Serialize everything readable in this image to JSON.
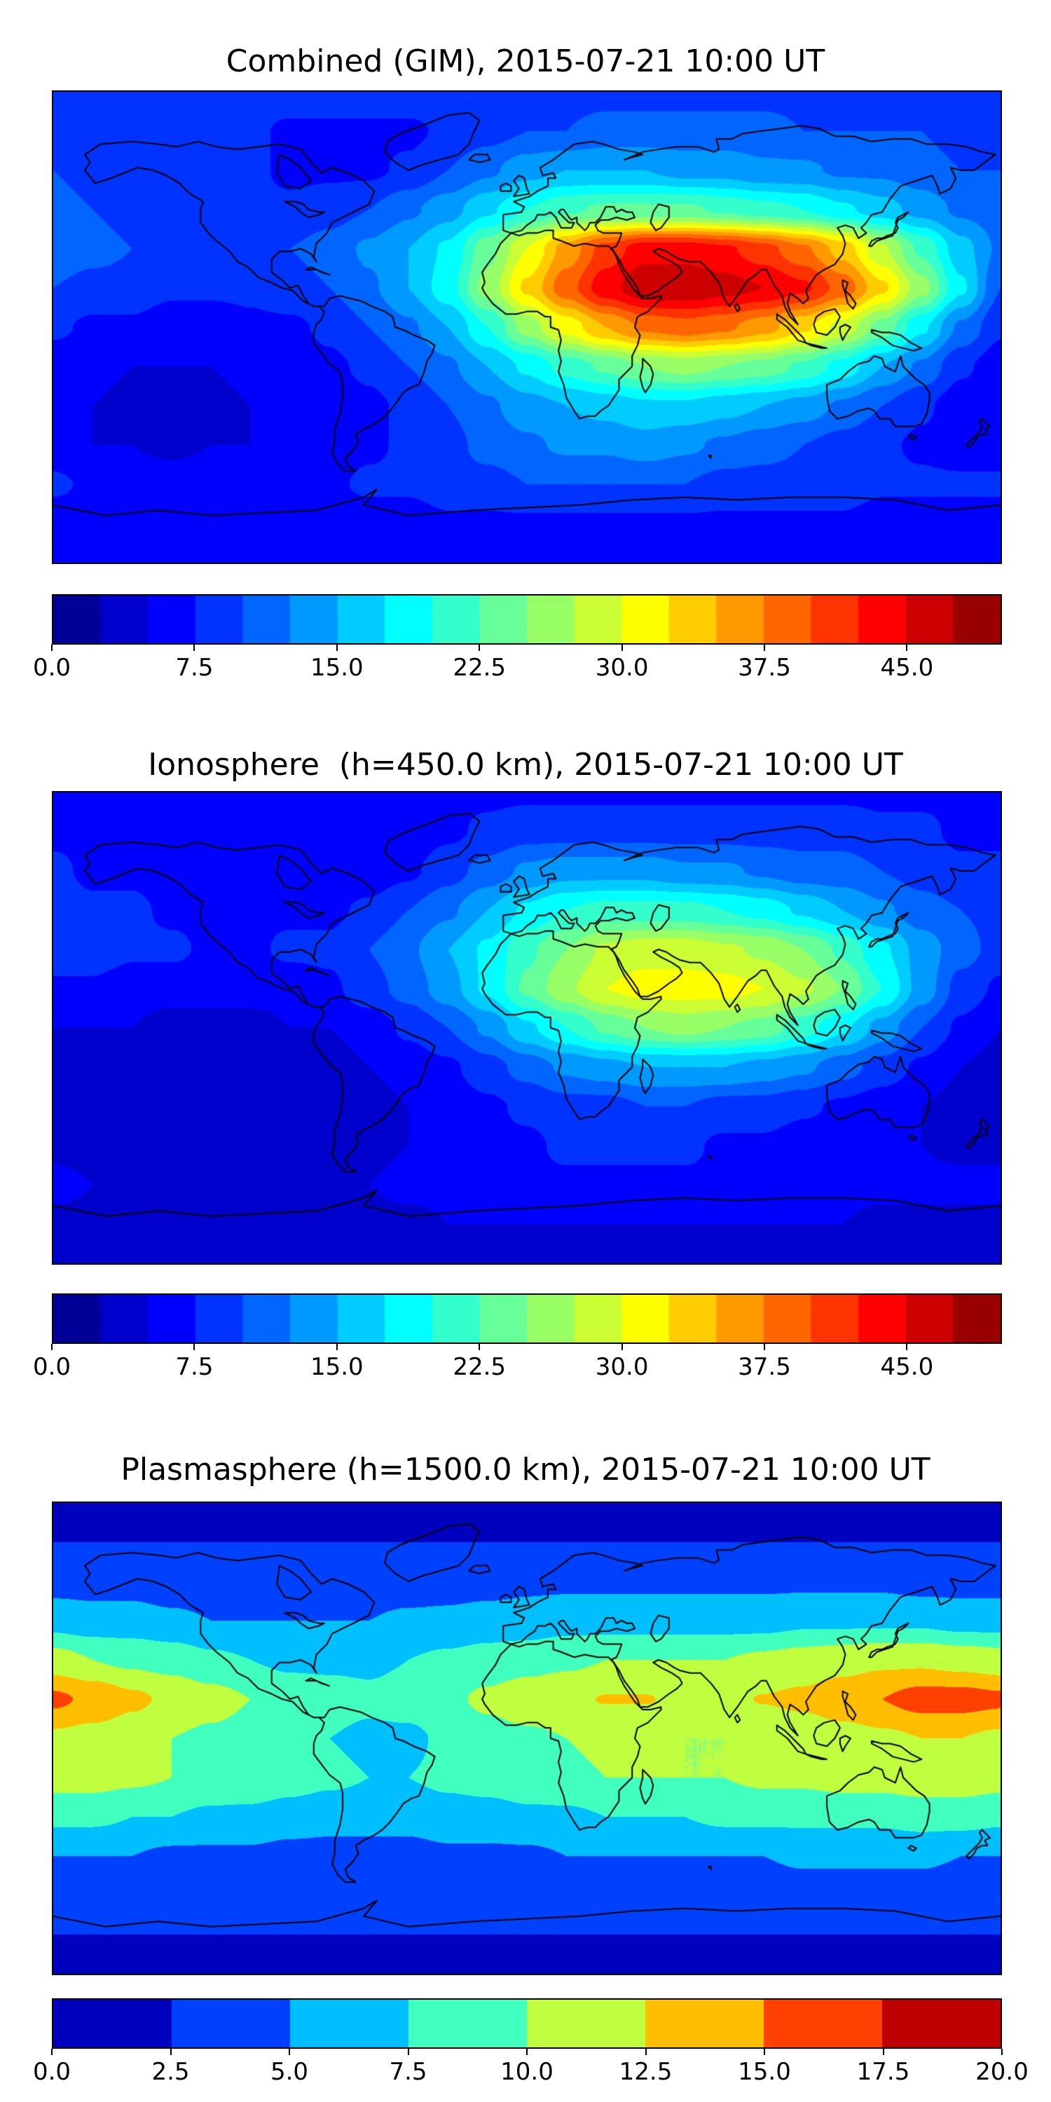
{
  "figure": {
    "background_color": "#ffffff",
    "text_color": "#000000",
    "frame_color": "#000000"
  },
  "chart_data": [
    {
      "type": "heatmap",
      "title": "Combined (GIM), 2015-07-21 10:00 UT",
      "projection": "equirectangular",
      "colormap": "jet",
      "overlay": "world-coastlines",
      "lon_range": [
        -180,
        180
      ],
      "lat_range": [
        -90,
        90
      ],
      "levels": {
        "min": 0,
        "max": 50,
        "step": 2.5
      },
      "colorbar": {
        "tick_values": [
          0,
          7.5,
          15,
          22.5,
          30,
          37.5,
          45
        ],
        "tick_labels": [
          "0.0",
          "7.5",
          "15.0",
          "22.5",
          "30.0",
          "37.5",
          "45.0"
        ]
      },
      "grid_lons": [
        -180,
        -165,
        -150,
        -135,
        -120,
        -105,
        -90,
        -75,
        -60,
        -45,
        -30,
        -15,
        0,
        15,
        30,
        45,
        60,
        75,
        90,
        105,
        120,
        135,
        150,
        165,
        180
      ],
      "grid_lats": [
        90,
        75,
        60,
        45,
        30,
        15,
        0,
        -15,
        -30,
        -45,
        -60,
        -75,
        -90
      ],
      "values": [
        [
          9,
          9,
          9,
          9,
          9,
          9,
          9,
          9,
          9,
          9,
          9,
          9,
          9,
          9,
          9,
          9,
          9,
          9,
          9,
          9,
          9,
          9,
          9,
          9,
          9
        ],
        [
          9,
          9,
          8,
          8,
          8,
          8,
          7,
          7,
          7,
          7,
          8,
          9,
          10,
          10,
          11,
          11,
          11,
          11,
          11,
          10,
          10,
          10,
          10,
          9,
          9
        ],
        [
          10,
          9,
          8,
          8,
          8,
          8,
          7,
          7,
          7,
          8,
          10,
          12,
          14,
          15,
          15,
          15,
          14,
          14,
          13,
          13,
          12,
          12,
          11,
          10,
          10
        ],
        [
          11,
          10,
          9,
          8,
          8,
          8,
          8,
          9,
          10,
          12,
          14,
          17,
          20,
          22,
          23,
          23,
          23,
          22,
          21,
          20,
          18,
          16,
          14,
          12,
          11
        ],
        [
          12,
          11,
          10,
          9,
          9,
          9,
          10,
          11,
          13,
          15,
          18,
          24,
          30,
          36,
          41,
          44,
          44,
          43,
          41,
          38,
          34,
          28,
          22,
          16,
          12
        ],
        [
          10,
          9,
          9,
          8,
          8,
          8,
          9,
          10,
          12,
          15,
          19,
          26,
          33,
          39,
          44,
          47,
          47,
          46,
          45,
          43,
          39,
          33,
          26,
          18,
          10
        ],
        [
          8,
          7,
          7,
          6,
          6,
          7,
          7,
          8,
          10,
          12,
          15,
          20,
          26,
          31,
          35,
          38,
          39,
          38,
          36,
          33,
          29,
          24,
          18,
          12,
          8
        ],
        [
          6,
          6,
          5,
          5,
          5,
          6,
          6,
          7,
          8,
          10,
          12,
          15,
          18,
          21,
          23,
          25,
          26,
          25,
          24,
          22,
          19,
          15,
          12,
          8,
          6
        ],
        [
          5,
          5,
          4,
          4,
          4,
          5,
          5,
          6,
          7,
          8,
          10,
          12,
          14,
          15,
          16,
          17,
          17,
          16,
          15,
          14,
          12,
          10,
          8,
          6,
          5
        ],
        [
          6,
          5,
          5,
          4,
          5,
          5,
          6,
          6,
          7,
          8,
          9,
          11,
          12,
          13,
          13,
          14,
          13,
          12,
          11,
          10,
          9,
          8,
          7,
          6,
          6
        ],
        [
          8,
          7,
          7,
          7,
          7,
          7,
          7,
          7,
          8,
          8,
          9,
          9,
          10,
          10,
          10,
          10,
          10,
          9,
          9,
          9,
          9,
          8,
          8,
          8,
          8
        ],
        [
          6,
          6,
          6,
          6,
          6,
          6,
          6,
          6,
          6,
          6,
          7,
          7,
          7,
          7,
          7,
          7,
          7,
          7,
          7,
          7,
          7,
          6,
          6,
          6,
          6
        ],
        [
          5,
          5,
          5,
          5,
          5,
          5,
          5,
          5,
          5,
          5,
          5,
          5,
          5,
          5,
          5,
          5,
          5,
          5,
          5,
          5,
          5,
          5,
          5,
          5,
          5
        ]
      ]
    },
    {
      "type": "heatmap",
      "title": "Ionosphere  (h=450.0 km), 2015-07-21 10:00 UT",
      "projection": "equirectangular",
      "colormap": "jet",
      "overlay": "world-coastlines",
      "lon_range": [
        -180,
        180
      ],
      "lat_range": [
        -90,
        90
      ],
      "levels": {
        "min": 0,
        "max": 50,
        "step": 2.5
      },
      "colorbar": {
        "tick_values": [
          0,
          7.5,
          15,
          22.5,
          30,
          37.5,
          45
        ],
        "tick_labels": [
          "0.0",
          "7.5",
          "15.0",
          "22.5",
          "30.0",
          "37.5",
          "45.0"
        ]
      },
      "grid_lons": [
        -180,
        -165,
        -150,
        -135,
        -120,
        -105,
        -90,
        -75,
        -60,
        -45,
        -30,
        -15,
        0,
        15,
        30,
        45,
        60,
        75,
        90,
        105,
        120,
        135,
        150,
        165,
        180
      ],
      "grid_lats": [
        90,
        75,
        60,
        45,
        30,
        15,
        0,
        -15,
        -30,
        -45,
        -60,
        -75,
        -90
      ],
      "values": [
        [
          7,
          7,
          7,
          7,
          7,
          7,
          7,
          7,
          7,
          7,
          7,
          7,
          7,
          7,
          7,
          7,
          7,
          7,
          7,
          7,
          7,
          7,
          7,
          7,
          7
        ],
        [
          7,
          7,
          6,
          6,
          6,
          6,
          6,
          6,
          6,
          6,
          7,
          8,
          9,
          9,
          9,
          9,
          9,
          9,
          9,
          9,
          9,
          8,
          8,
          7,
          7
        ],
        [
          8,
          7,
          7,
          6,
          6,
          6,
          6,
          6,
          6,
          7,
          9,
          11,
          13,
          14,
          14,
          14,
          13,
          13,
          12,
          11,
          11,
          10,
          9,
          8,
          8
        ],
        [
          9,
          8,
          8,
          7,
          7,
          7,
          7,
          7,
          8,
          10,
          12,
          15,
          18,
          20,
          21,
          21,
          21,
          20,
          19,
          17,
          15,
          13,
          11,
          10,
          9
        ],
        [
          9,
          9,
          8,
          8,
          7,
          7,
          8,
          8,
          10,
          12,
          15,
          18,
          22,
          25,
          28,
          29,
          29,
          28,
          27,
          25,
          22,
          18,
          14,
          11,
          9
        ],
        [
          7,
          7,
          6,
          6,
          6,
          6,
          6,
          7,
          9,
          11,
          14,
          18,
          23,
          27,
          30,
          31,
          31,
          31,
          30,
          28,
          25,
          20,
          14,
          9,
          7
        ],
        [
          5,
          5,
          5,
          4,
          4,
          4,
          5,
          5,
          6,
          8,
          10,
          13,
          17,
          20,
          23,
          25,
          26,
          25,
          24,
          21,
          18,
          14,
          10,
          7,
          5
        ],
        [
          4,
          4,
          3,
          3,
          3,
          3,
          4,
          4,
          5,
          6,
          7,
          9,
          11,
          13,
          14,
          15,
          15,
          15,
          14,
          13,
          11,
          9,
          7,
          5,
          4
        ],
        [
          3,
          3,
          3,
          3,
          3,
          3,
          3,
          4,
          4,
          5,
          6,
          7,
          8,
          9,
          9,
          10,
          10,
          9,
          9,
          8,
          7,
          6,
          5,
          4,
          3
        ],
        [
          4,
          4,
          3,
          3,
          3,
          3,
          4,
          4,
          4,
          5,
          6,
          7,
          7,
          8,
          8,
          8,
          8,
          7,
          7,
          6,
          6,
          5,
          5,
          4,
          4
        ],
        [
          6,
          5,
          5,
          5,
          5,
          5,
          5,
          5,
          5,
          6,
          6,
          7,
          7,
          7,
          7,
          7,
          7,
          7,
          6,
          6,
          6,
          6,
          6,
          6,
          6
        ],
        [
          4,
          4,
          4,
          4,
          4,
          4,
          4,
          4,
          4,
          4,
          5,
          5,
          5,
          5,
          5,
          5,
          5,
          5,
          5,
          5,
          5,
          4,
          4,
          4,
          4
        ],
        [
          4,
          4,
          4,
          4,
          4,
          4,
          4,
          4,
          4,
          4,
          4,
          4,
          4,
          4,
          4,
          4,
          4,
          4,
          4,
          4,
          4,
          4,
          4,
          4,
          4
        ]
      ]
    },
    {
      "type": "heatmap",
      "title": "Plasmasphere (h=1500.0 km), 2015-07-21 10:00 UT",
      "projection": "equirectangular",
      "colormap": "jet",
      "overlay": "world-coastlines",
      "lon_range": [
        -180,
        180
      ],
      "lat_range": [
        -90,
        90
      ],
      "levels": {
        "min": 0,
        "max": 20,
        "step": 2.5
      },
      "colorbar": {
        "tick_values": [
          0,
          2.5,
          5,
          7.5,
          10,
          12.5,
          15,
          17.5,
          20
        ],
        "tick_labels": [
          "0.0",
          "2.5",
          "5.0",
          "7.5",
          "10.0",
          "12.5",
          "15.0",
          "17.5",
          "20.0"
        ]
      },
      "grid_lons": [
        -180,
        -165,
        -150,
        -135,
        -120,
        -105,
        -90,
        -75,
        -60,
        -45,
        -30,
        -15,
        0,
        15,
        30,
        45,
        60,
        75,
        90,
        105,
        120,
        135,
        150,
        165,
        180
      ],
      "grid_lats": [
        90,
        75,
        60,
        45,
        30,
        15,
        0,
        -15,
        -30,
        -45,
        -60,
        -75,
        -90
      ],
      "values": [
        [
          2,
          2,
          2,
          2,
          2,
          2,
          2,
          2,
          2,
          2,
          2,
          2,
          2,
          2,
          2,
          2,
          2,
          2,
          2,
          2,
          2,
          2,
          2,
          2,
          2
        ],
        [
          2.5,
          2.5,
          2.5,
          2.5,
          2.5,
          2.5,
          2.5,
          2.5,
          2.5,
          2.5,
          2.5,
          2.5,
          2.5,
          2.5,
          2.5,
          2.5,
          2.5,
          2.5,
          2.5,
          2.5,
          2.5,
          2.5,
          2.5,
          2.5,
          2.5
        ],
        [
          4,
          4,
          4,
          3.5,
          3.5,
          3.5,
          3.5,
          3.5,
          3.5,
          3.5,
          4,
          4,
          4.5,
          4.5,
          4.5,
          4.5,
          4.5,
          4.5,
          4.5,
          4.5,
          4.5,
          4.5,
          4,
          4,
          4
        ],
        [
          6.5,
          6,
          6,
          5.5,
          5,
          5,
          5,
          5,
          5,
          5.5,
          5.5,
          6,
          6,
          6.5,
          6.5,
          6.5,
          6.5,
          6.5,
          6.5,
          7,
          7,
          7,
          7,
          6.5,
          6.5
        ],
        [
          11,
          10,
          9.5,
          9,
          8,
          7.5,
          7,
          7,
          7,
          7.5,
          8,
          8.5,
          9,
          9.5,
          10,
          10,
          10,
          10,
          10.5,
          11,
          11.5,
          12,
          12,
          11.5,
          11
        ],
        [
          15.5,
          14.5,
          13,
          12,
          11,
          10,
          9,
          8.5,
          8,
          8.5,
          9.5,
          10.5,
          11.5,
          12,
          12.6,
          12.6,
          12,
          12,
          12.6,
          13,
          14,
          15,
          16,
          16,
          15.5
        ],
        [
          12,
          11.5,
          11,
          10,
          9.5,
          9,
          8,
          7.5,
          7,
          7,
          8,
          9,
          9.5,
          10,
          10.5,
          10.5,
          10,
          10,
          10.5,
          11,
          11.5,
          12,
          12.5,
          12.5,
          12
        ],
        [
          11,
          11,
          10.5,
          10,
          9.5,
          9,
          8.5,
          8,
          7.5,
          7.5,
          8,
          8.5,
          9,
          9.5,
          10,
          10,
          10,
          10,
          10.5,
          10.5,
          11,
          11,
          11.5,
          11.5,
          11
        ],
        [
          8,
          8,
          7.5,
          7.5,
          7,
          7,
          6.5,
          6,
          6,
          6,
          6.5,
          6.5,
          7,
          7,
          7.5,
          7.5,
          7.5,
          8,
          8,
          8,
          8,
          8,
          8.5,
          8.5,
          8
        ],
        [
          5,
          5,
          5,
          4.5,
          4.5,
          4.5,
          4,
          4,
          4,
          4,
          4.5,
          4.5,
          4.5,
          5,
          5,
          5,
          5,
          5,
          5,
          5.5,
          5.5,
          5.5,
          5.5,
          5,
          5
        ],
        [
          3,
          3,
          3,
          3,
          3,
          3,
          3,
          3,
          3,
          3,
          3,
          3,
          3,
          3,
          3,
          3,
          3,
          3,
          3,
          3.5,
          3.5,
          3.5,
          3.5,
          3,
          3
        ],
        [
          2.5,
          2.5,
          2.5,
          2.5,
          2.5,
          2.5,
          2.5,
          2.5,
          2.5,
          2.5,
          2.5,
          2.5,
          2.5,
          2.5,
          2.5,
          2.5,
          2.5,
          2.5,
          2.5,
          2.5,
          2.5,
          2.5,
          2.5,
          2.5,
          2.5
        ],
        [
          2,
          2,
          2,
          2,
          2,
          2,
          2,
          2,
          2,
          2,
          2,
          2,
          2,
          2,
          2,
          2,
          2,
          2,
          2,
          2,
          2,
          2,
          2,
          2,
          2
        ]
      ]
    }
  ]
}
